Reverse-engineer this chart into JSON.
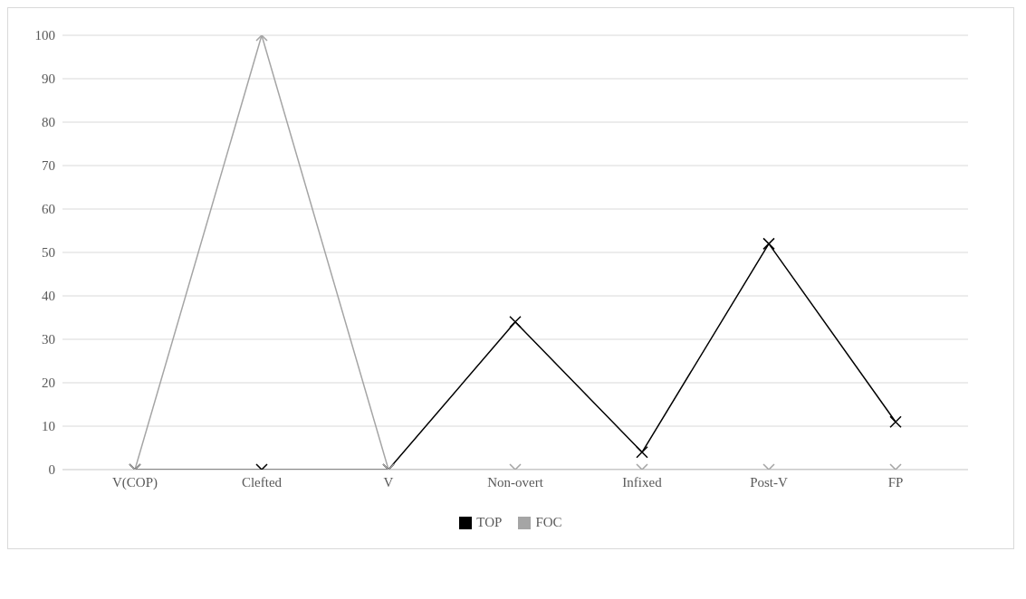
{
  "chart_data": {
    "type": "line",
    "categories": [
      "V(COP)",
      "Clefted",
      "V",
      "Non-overt",
      "Infixed",
      "Post-V",
      "FP"
    ],
    "series": [
      {
        "name": "TOP",
        "color": "#000000",
        "values": [
          0,
          0,
          0,
          34,
          4,
          52,
          11
        ]
      },
      {
        "name": "FOC",
        "color": "#a5a5a5",
        "values": [
          0,
          100,
          0,
          0,
          0,
          0,
          0
        ]
      }
    ],
    "ylim": [
      0,
      100
    ],
    "yticks": [
      0,
      10,
      20,
      30,
      40,
      50,
      60,
      70,
      80,
      90,
      100
    ],
    "grid": "y",
    "legend": "bottom",
    "marker": "cross"
  }
}
